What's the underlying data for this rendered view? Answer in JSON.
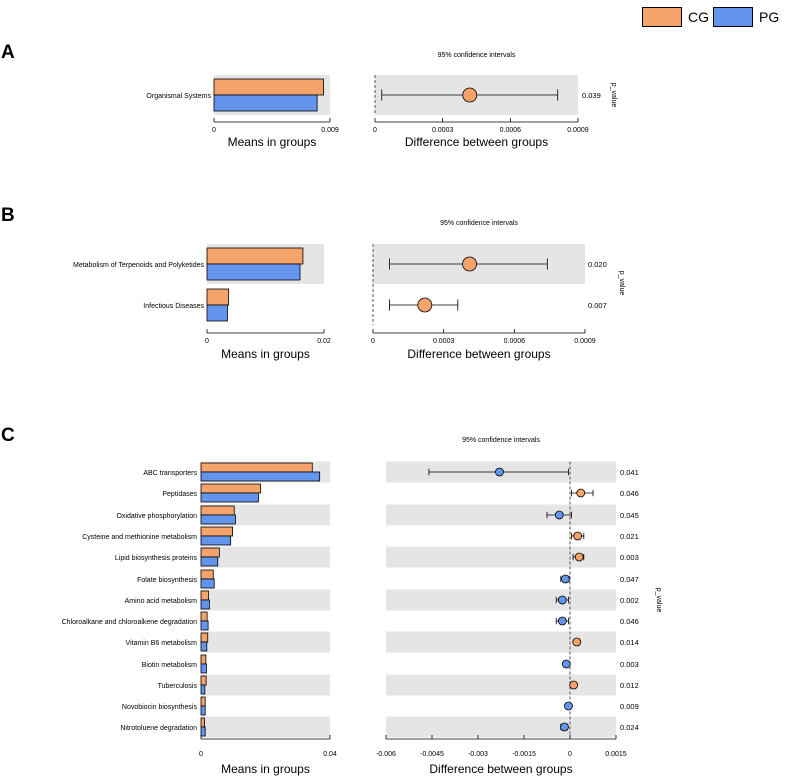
{
  "legend": [
    {
      "label": "CG",
      "color": "#F4A46A"
    },
    {
      "label": "PG",
      "color": "#6495ED"
    }
  ],
  "chart_data": [
    {
      "panel": "A",
      "type": "bar",
      "categories": [
        "Organismal Systems"
      ],
      "series": [
        {
          "name": "CG",
          "values": [
            0.0085
          ]
        },
        {
          "name": "PG",
          "values": [
            0.008
          ]
        }
      ],
      "means_xlabel": "Means in groups",
      "means_xlim": [
        0,
        0.009
      ],
      "means_ticks": [
        "0",
        "0.009"
      ],
      "ci": {
        "title": "95% confidence intervals",
        "xlabel": "Difference between groups",
        "xlim": [
          0,
          0.0009
        ],
        "ticks": [
          "0",
          "0.0003",
          "0.0006",
          "0.0009"
        ],
        "diff": [
          0.00042
        ],
        "lower": [
          3e-05
        ],
        "upper": [
          0.00081
        ],
        "higher_group": [
          "CG"
        ],
        "p_values": [
          "0.039"
        ],
        "p_label": "p_value"
      }
    },
    {
      "panel": "B",
      "type": "bar",
      "categories": [
        "Metabolism of Terpenoids and Polyketides",
        "Infectious Diseases"
      ],
      "series": [
        {
          "name": "CG",
          "values": [
            0.0164,
            0.0037
          ]
        },
        {
          "name": "PG",
          "values": [
            0.0159,
            0.0035
          ]
        }
      ],
      "means_xlabel": "Means in groups",
      "means_xlim": [
        0,
        0.02
      ],
      "means_ticks": [
        "0",
        "0.02"
      ],
      "ci": {
        "title": "95% confidence intervals",
        "xlabel": "Difference between groups",
        "xlim": [
          0,
          0.0009
        ],
        "ticks": [
          "0",
          "0.0003",
          "0.0006",
          "0.0009"
        ],
        "diff": [
          0.00041,
          0.00022
        ],
        "lower": [
          7e-05,
          7e-05
        ],
        "upper": [
          0.00074,
          0.00036
        ],
        "higher_group": [
          "CG",
          "CG"
        ],
        "p_values": [
          "0.020",
          "0.007"
        ],
        "p_label": "p_value"
      }
    },
    {
      "panel": "C",
      "type": "bar",
      "categories": [
        "ABC transporters",
        "Peptidases",
        "Oxidative phosphorylation",
        "Cysteine and methionine metabolism",
        "Lipid biosynthesis proteins",
        "Folate biosynthesis",
        "Amino acid metabolism",
        "Chloroalkane and chloroalkene degradation",
        "Vitamin B6 metabolism",
        "Biotin metabolism",
        "Tuberculosis",
        "Novobiocin biosynthesis",
        "Nitrotoluene degradation"
      ],
      "series": [
        {
          "name": "CG",
          "values": [
            0.0345,
            0.0185,
            0.0103,
            0.0098,
            0.0057,
            0.0038,
            0.0023,
            0.0019,
            0.0021,
            0.0015,
            0.0016,
            0.0013,
            0.0011
          ]
        },
        {
          "name": "PG",
          "values": [
            0.0368,
            0.0178,
            0.0107,
            0.0092,
            0.0052,
            0.0041,
            0.0026,
            0.0022,
            0.0018,
            0.0017,
            0.0012,
            0.0013,
            0.0013
          ]
        }
      ],
      "means_xlabel": "Means in groups",
      "means_xlim": [
        0,
        0.04
      ],
      "means_ticks": [
        "0",
        "0.04"
      ],
      "ci": {
        "title": "95% confidence intervals",
        "xlabel": "Difference between groups",
        "xlim": [
          -0.006,
          0.0015
        ],
        "ticks": [
          "-0.006",
          "-0.0045",
          "-0.003",
          "-0.0015",
          "0",
          "0.0015"
        ],
        "diff": [
          -0.0023,
          0.00035,
          -0.00035,
          0.00025,
          0.0003,
          -0.00015,
          -0.00025,
          -0.00025,
          0.00022,
          -0.00012,
          0.00012,
          -5e-05,
          -0.00018
        ],
        "lower": [
          -0.0046,
          5e-05,
          -0.00075,
          5e-05,
          0.0001,
          -0.0003,
          -0.00045,
          -0.00045,
          0.00015,
          -0.0002,
          8e-05,
          -0.0001,
          -0.0003
        ],
        "upper": [
          -5e-05,
          0.00075,
          5e-05,
          0.00045,
          0.00045,
          -3e-05,
          -5e-05,
          -5e-05,
          0.00032,
          -6e-05,
          0.00015,
          0.0,
          -8e-05
        ],
        "higher_group": [
          "PG",
          "CG",
          "PG",
          "CG",
          "CG",
          "PG",
          "PG",
          "PG",
          "CG",
          "PG",
          "CG",
          "PG",
          "PG"
        ],
        "p_values": [
          "0.041",
          "0.046",
          "0.045",
          "0.021",
          "0.003",
          "0.047",
          "0.002",
          "0.046",
          "0.014",
          "0.003",
          "0.012",
          "0.009",
          "0.024"
        ],
        "p_label": "p_value"
      }
    }
  ]
}
